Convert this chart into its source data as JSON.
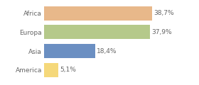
{
  "categories": [
    "America",
    "Asia",
    "Europa",
    "Africa"
  ],
  "values": [
    5.1,
    18.4,
    37.9,
    38.7
  ],
  "labels": [
    "5,1%",
    "18,4%",
    "37,9%",
    "38,7%"
  ],
  "colors": [
    "#f5d87a",
    "#6b8fc2",
    "#b5c98a",
    "#e8b88a"
  ],
  "xlim": [
    0,
    47
  ],
  "background_color": "#ffffff",
  "bar_height": 0.75,
  "label_fontsize": 6.5,
  "tick_fontsize": 6.5,
  "tick_color": "#666666",
  "label_color": "#666666"
}
